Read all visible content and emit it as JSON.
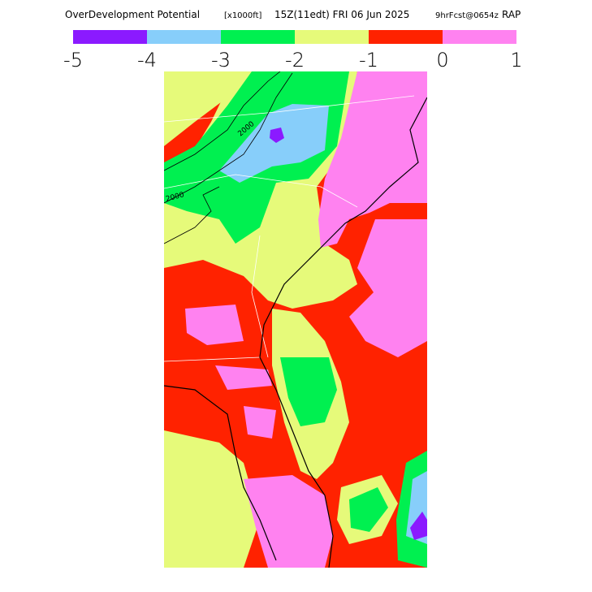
{
  "header": {
    "title": "OverDevelopment Potential",
    "units": "[x1000ft]",
    "valid": "15Z(11edt) FRI 06 Jun 2025",
    "forecast": "9hrFcst@0654z",
    "model": "RAP"
  },
  "colorbar": {
    "colors": [
      "#8b1aff",
      "#87cefa",
      "#00f050",
      "#e6fa7a",
      "#ff2200",
      "#ff82f0"
    ],
    "ticks": [
      -5,
      -4,
      -3,
      -2,
      -1,
      0,
      1
    ]
  },
  "contour_labels": [
    "2000",
    "2000"
  ]
}
